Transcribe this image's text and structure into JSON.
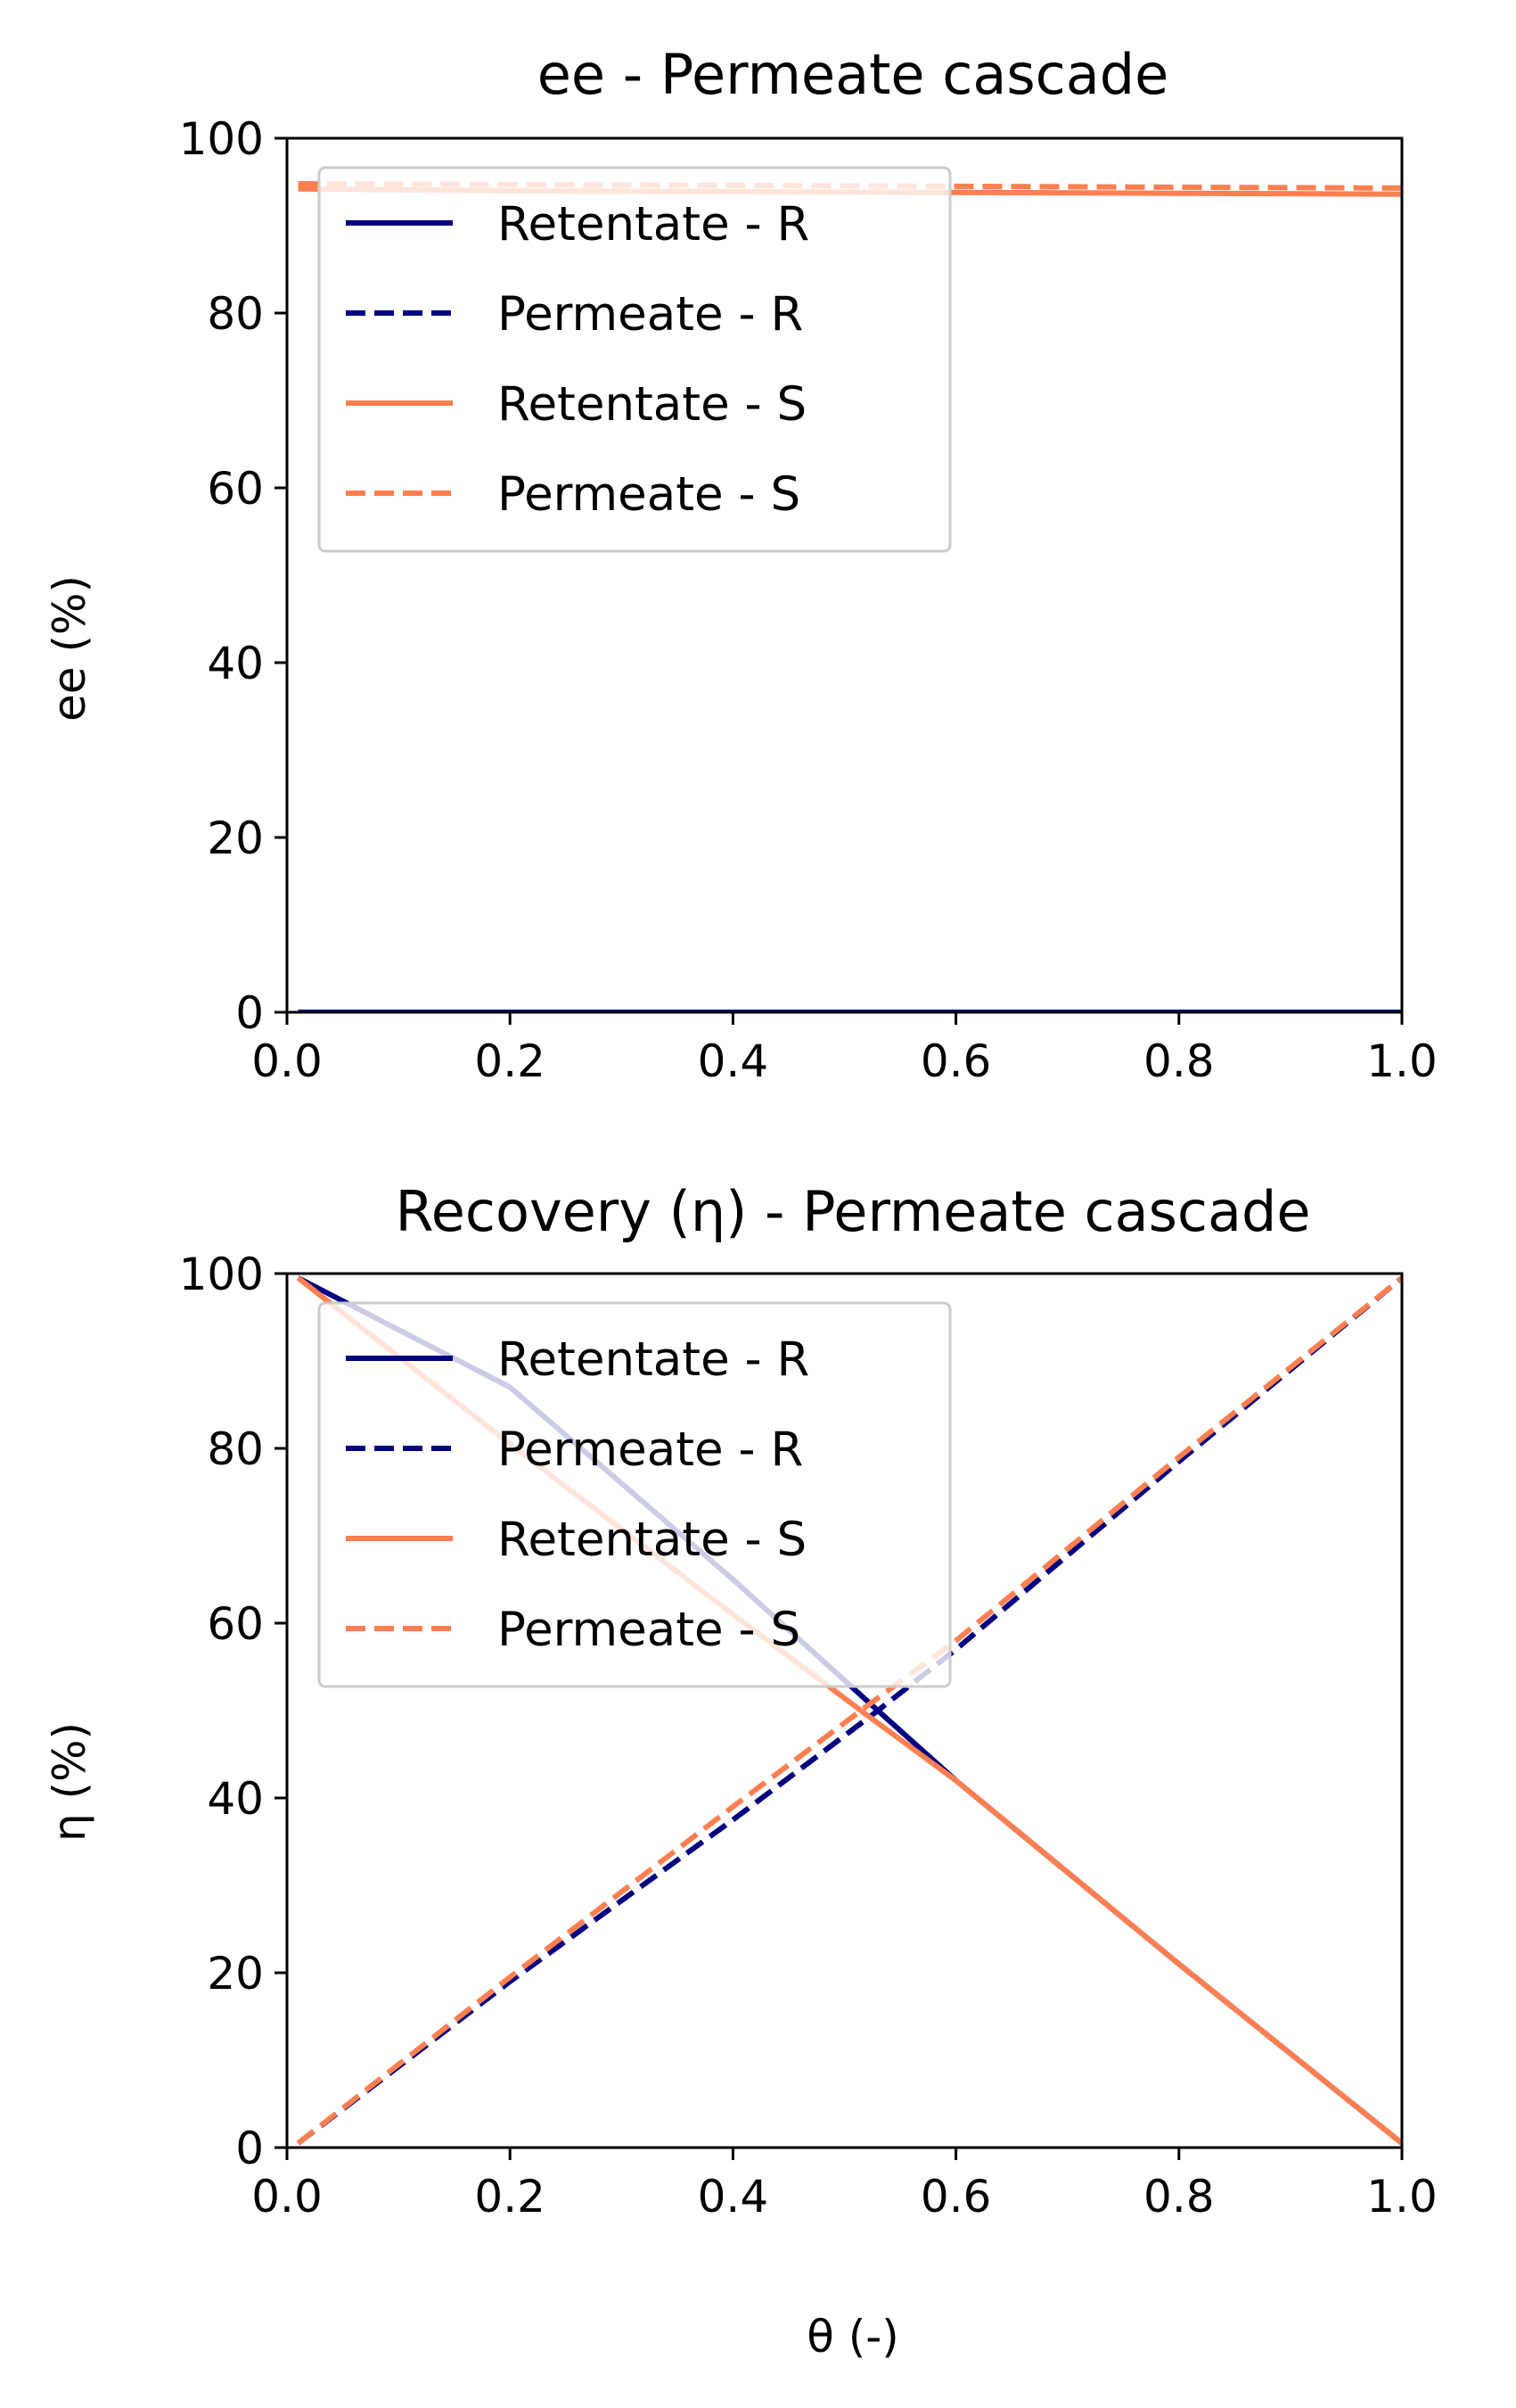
{
  "chart_data": [
    {
      "type": "line",
      "title": "ee - Permeate cascade",
      "xlabel": "",
      "ylabel": "ee (%)",
      "xlim": [
        0,
        1
      ],
      "ylim": [
        0,
        100
      ],
      "xticks": [
        "0.0",
        "0.2",
        "0.4",
        "0.6",
        "0.8",
        "1.0"
      ],
      "yticks": [
        "0",
        "20",
        "40",
        "60",
        "80",
        "100"
      ],
      "legend_position": "upper-left",
      "series": [
        {
          "name": "Retentate - R",
          "color": "#000080",
          "dash": "solid",
          "x": [
            0.01,
            1.0
          ],
          "y": [
            0,
            0
          ]
        },
        {
          "name": "Permeate - R",
          "color": "#000080",
          "dash": "dashed",
          "x": [
            0.01,
            1.0
          ],
          "y": [
            0,
            0
          ]
        },
        {
          "name": "Retentate - S",
          "color": "#ff7f50",
          "dash": "solid",
          "x": [
            0.01,
            0.2,
            0.4,
            0.6,
            0.8,
            1.0
          ],
          "y": [
            94.2,
            94.0,
            93.9,
            93.8,
            93.7,
            93.6
          ]
        },
        {
          "name": "Permeate - S",
          "color": "#ff7f50",
          "dash": "dashed",
          "x": [
            0.01,
            0.2,
            0.4,
            0.6,
            0.8,
            1.0
          ],
          "y": [
            94.8,
            94.7,
            94.6,
            94.5,
            94.4,
            94.3
          ]
        }
      ]
    },
    {
      "type": "line",
      "title": "Recovery (η) - Permeate cascade",
      "xlabel": "θ (-)",
      "ylabel": "η (%)",
      "xlim": [
        0,
        1
      ],
      "ylim": [
        0,
        100
      ],
      "xticks": [
        "0.0",
        "0.2",
        "0.4",
        "0.6",
        "0.8",
        "1.0"
      ],
      "yticks": [
        "0",
        "20",
        "40",
        "60",
        "80",
        "100"
      ],
      "legend_position": "upper-left",
      "series": [
        {
          "name": "Retentate - R",
          "color": "#000080",
          "dash": "solid",
          "x": [
            0.01,
            0.2,
            0.4,
            0.53,
            0.6,
            0.8,
            1.0
          ],
          "y": [
            99.5,
            87.0,
            65.0,
            50.0,
            42.0,
            21.0,
            0.5
          ]
        },
        {
          "name": "Permeate - R",
          "color": "#000080",
          "dash": "dashed",
          "x": [
            0.01,
            0.2,
            0.4,
            0.53,
            0.6,
            0.8,
            1.0
          ],
          "y": [
            0.5,
            19.0,
            37.5,
            50.0,
            57.0,
            78.5,
            99.5
          ]
        },
        {
          "name": "Retentate - S",
          "color": "#ff7f50",
          "dash": "solid",
          "x": [
            0.01,
            0.2,
            0.4,
            0.52,
            0.6,
            0.8,
            1.0
          ],
          "y": [
            99.5,
            80.5,
            61.0,
            49.5,
            42.0,
            21.0,
            0.5
          ]
        },
        {
          "name": "Permeate - S",
          "color": "#ff7f50",
          "dash": "dashed",
          "x": [
            0.01,
            0.2,
            0.4,
            0.52,
            0.6,
            0.8,
            1.0
          ],
          "y": [
            0.5,
            19.5,
            39.0,
            50.5,
            58.0,
            79.0,
            99.5
          ]
        }
      ]
    }
  ]
}
